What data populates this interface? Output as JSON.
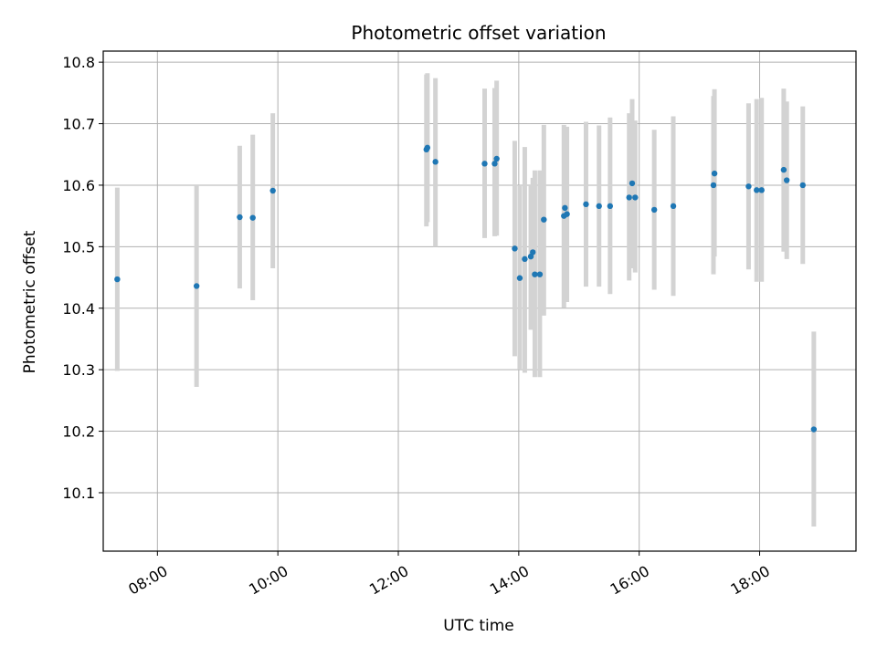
{
  "chart_data": {
    "type": "scatter",
    "title": "Photometric offset variation",
    "xlabel": "UTC time",
    "ylabel": "Photometric offset",
    "x_ticks": [
      "08:00",
      "10:00",
      "12:00",
      "14:00",
      "16:00",
      "18:00"
    ],
    "y_ticks": [
      "10.1",
      "10.2",
      "10.3",
      "10.4",
      "10.5",
      "10.6",
      "10.7",
      "10.8"
    ],
    "xlim": [
      "07:06",
      "19:36"
    ],
    "ylim": [
      10.005,
      10.818
    ],
    "grid": true,
    "point_color": "#1f77b4",
    "errorbar_color": "#d3d3d3",
    "points": [
      {
        "t": "07:20",
        "y": 10.447,
        "lo": 10.298,
        "hi": 10.596
      },
      {
        "t": "08:39",
        "y": 10.436,
        "lo": 10.272,
        "hi": 10.6
      },
      {
        "t": "09:22",
        "y": 10.548,
        "lo": 10.432,
        "hi": 10.664
      },
      {
        "t": "09:35",
        "y": 10.547,
        "lo": 10.413,
        "hi": 10.682
      },
      {
        "t": "09:55",
        "y": 10.591,
        "lo": 10.465,
        "hi": 10.717
      },
      {
        "t": "12:28",
        "y": 10.658,
        "lo": 10.533,
        "hi": 10.78
      },
      {
        "t": "12:29",
        "y": 10.661,
        "lo": 10.54,
        "hi": 10.782
      },
      {
        "t": "12:37",
        "y": 10.638,
        "lo": 10.5,
        "hi": 10.774
      },
      {
        "t": "13:26",
        "y": 10.635,
        "lo": 10.514,
        "hi": 10.757
      },
      {
        "t": "13:36",
        "y": 10.635,
        "lo": 10.517,
        "hi": 10.758
      },
      {
        "t": "13:38",
        "y": 10.643,
        "lo": 10.518,
        "hi": 10.77
      },
      {
        "t": "13:56",
        "y": 10.497,
        "lo": 10.322,
        "hi": 10.672
      },
      {
        "t": "14:01",
        "y": 10.449,
        "lo": 10.3,
        "hi": 10.6
      },
      {
        "t": "14:06",
        "y": 10.48,
        "lo": 10.295,
        "hi": 10.662
      },
      {
        "t": "14:12",
        "y": 10.484,
        "lo": 10.365,
        "hi": 10.6
      },
      {
        "t": "14:14",
        "y": 10.491,
        "lo": 10.369,
        "hi": 10.612
      },
      {
        "t": "14:16",
        "y": 10.455,
        "lo": 10.288,
        "hi": 10.624
      },
      {
        "t": "14:21",
        "y": 10.455,
        "lo": 10.288,
        "hi": 10.624
      },
      {
        "t": "14:25",
        "y": 10.544,
        "lo": 10.388,
        "hi": 10.698
      },
      {
        "t": "14:45",
        "y": 10.55,
        "lo": 10.401,
        "hi": 10.698
      },
      {
        "t": "14:46",
        "y": 10.563,
        "lo": 10.43,
        "hi": 10.693
      },
      {
        "t": "14:48",
        "y": 10.553,
        "lo": 10.41,
        "hi": 10.695
      },
      {
        "t": "15:07",
        "y": 10.569,
        "lo": 10.435,
        "hi": 10.703
      },
      {
        "t": "15:20",
        "y": 10.566,
        "lo": 10.435,
        "hi": 10.697
      },
      {
        "t": "15:31",
        "y": 10.566,
        "lo": 10.423,
        "hi": 10.71
      },
      {
        "t": "15:50",
        "y": 10.58,
        "lo": 10.445,
        "hi": 10.717
      },
      {
        "t": "15:53",
        "y": 10.603,
        "lo": 10.465,
        "hi": 10.74
      },
      {
        "t": "15:56",
        "y": 10.58,
        "lo": 10.458,
        "hi": 10.705
      },
      {
        "t": "16:15",
        "y": 10.56,
        "lo": 10.43,
        "hi": 10.69
      },
      {
        "t": "16:34",
        "y": 10.566,
        "lo": 10.42,
        "hi": 10.712
      },
      {
        "t": "17:14",
        "y": 10.6,
        "lo": 10.455,
        "hi": 10.745
      },
      {
        "t": "17:15",
        "y": 10.619,
        "lo": 10.484,
        "hi": 10.756
      },
      {
        "t": "17:49",
        "y": 10.598,
        "lo": 10.463,
        "hi": 10.733
      },
      {
        "t": "17:57",
        "y": 10.592,
        "lo": 10.443,
        "hi": 10.74
      },
      {
        "t": "18:02",
        "y": 10.592,
        "lo": 10.443,
        "hi": 10.742
      },
      {
        "t": "18:24",
        "y": 10.625,
        "lo": 10.492,
        "hi": 10.757
      },
      {
        "t": "18:27",
        "y": 10.608,
        "lo": 10.48,
        "hi": 10.736
      },
      {
        "t": "18:43",
        "y": 10.6,
        "lo": 10.472,
        "hi": 10.728
      },
      {
        "t": "18:54",
        "y": 10.203,
        "lo": 10.045,
        "hi": 10.362
      }
    ]
  }
}
